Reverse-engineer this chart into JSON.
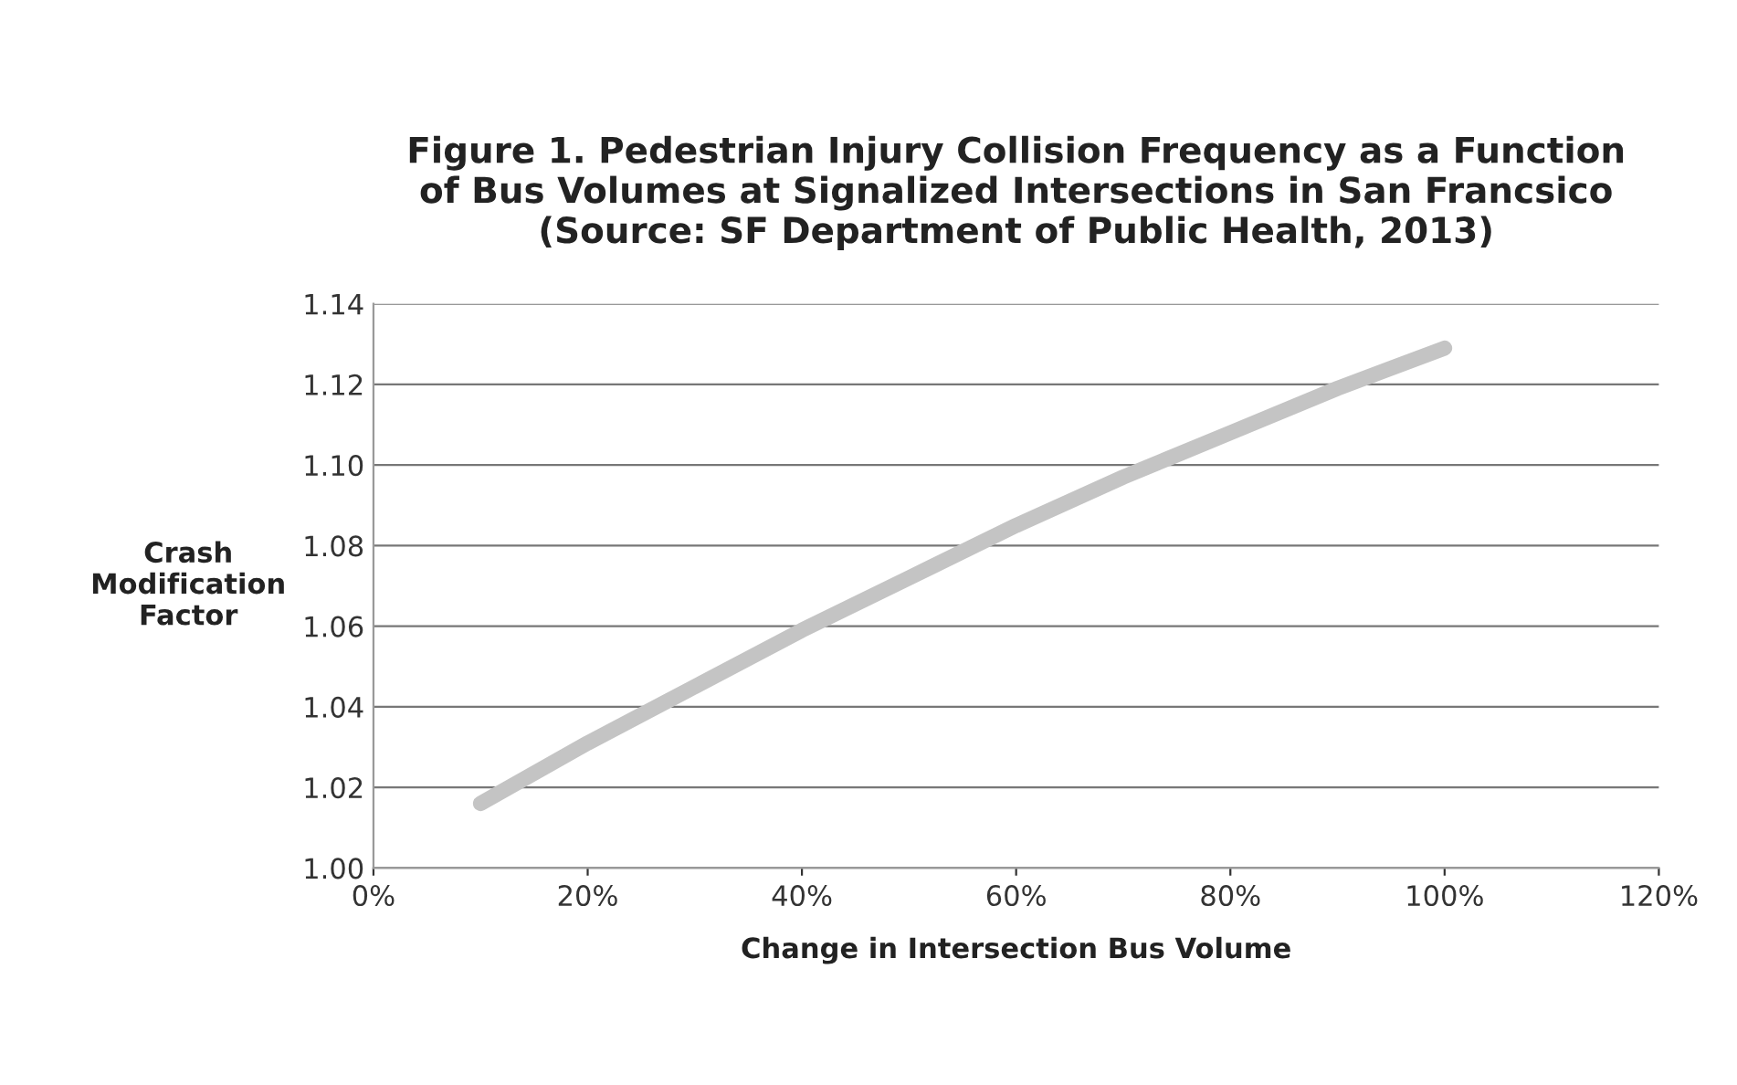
{
  "chart_data": {
    "type": "line",
    "title": "Figure 1. Pedestrian Injury Collision Frequency as a Function\nof Bus Volumes at Signalized Intersections in San Francsico\n(Source: SF Department of Public Health, 2013)",
    "xlabel": "Change in Intersection Bus Volume",
    "ylabel": "Crash\nModification\nFactor",
    "x": [
      10,
      20,
      30,
      40,
      50,
      60,
      70,
      80,
      90,
      100
    ],
    "series": [
      {
        "color": "#c4c4c4",
        "values": [
          1.016,
          1.031,
          1.045,
          1.059,
          1.072,
          1.085,
          1.097,
          1.108,
          1.119,
          1.129
        ]
      }
    ],
    "xlim": [
      0,
      120
    ],
    "xticks": [
      {
        "value": 0,
        "label": "0%"
      },
      {
        "value": 20,
        "label": "20%"
      },
      {
        "value": 40,
        "label": "40%"
      },
      {
        "value": 60,
        "label": "60%"
      },
      {
        "value": 80,
        "label": "80%"
      },
      {
        "value": 100,
        "label": "100%"
      },
      {
        "value": 120,
        "label": "120%"
      }
    ],
    "ylim": [
      1.0,
      1.14
    ],
    "yticks": [
      {
        "value": 1.0,
        "label": "1.00"
      },
      {
        "value": 1.02,
        "label": "1.02"
      },
      {
        "value": 1.04,
        "label": "1.04"
      },
      {
        "value": 1.06,
        "label": "1.06"
      },
      {
        "value": 1.08,
        "label": "1.08"
      },
      {
        "value": 1.1,
        "label": "1.10"
      },
      {
        "value": 1.12,
        "label": "1.12"
      },
      {
        "value": 1.14,
        "label": "1.14"
      }
    ],
    "grid": "y",
    "line_style": "solid",
    "marker": "none"
  }
}
